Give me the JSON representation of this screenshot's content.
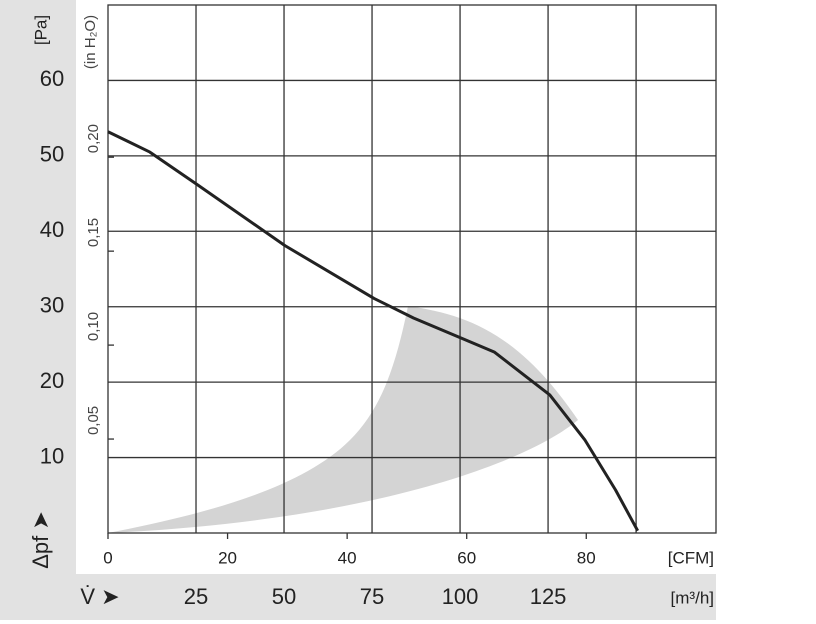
{
  "chart_data": {
    "type": "line",
    "y_label": "[Pa]",
    "y2_label": "(in H₂O)",
    "y_arrow_label": "Δpf ➤",
    "x_label": "[CFM]",
    "x2_arrow_label": "V̇ ➤",
    "x2_label": "[m³/h]",
    "x": [
      0,
      7.0,
      14.9,
      29.6,
      44.5,
      51.1,
      59.2,
      64.6,
      73.9,
      79.8,
      84.9,
      88.6
    ],
    "series": [
      {
        "color": "#222222",
        "values": [
          53.2,
          50.5,
          46.2,
          38.1,
          31.1,
          28.5,
          25.8,
          24.0,
          18.3,
          12.3,
          5.7,
          0.3
        ]
      }
    ],
    "xlim": [
      0,
      101.7
    ],
    "xticks": [
      0,
      20,
      40,
      60,
      80
    ],
    "x2lim": [
      0,
      172.7
    ],
    "x2ticks": [
      25,
      50,
      75,
      100,
      125
    ],
    "x2grid": [
      25,
      50,
      75,
      100,
      125,
      150
    ],
    "ylim": [
      0,
      70
    ],
    "yticks": [
      10,
      20,
      30,
      40,
      50,
      60
    ],
    "y2lim": [
      0,
      0.281
    ],
    "y2ticks": [
      {
        "value": 0.05,
        "label": "0,05"
      },
      {
        "value": 0.1,
        "label": "0,10"
      },
      {
        "value": 0.15,
        "label": "0,15"
      },
      {
        "value": 0.2,
        "label": "0,20"
      }
    ],
    "grid": true
  }
}
